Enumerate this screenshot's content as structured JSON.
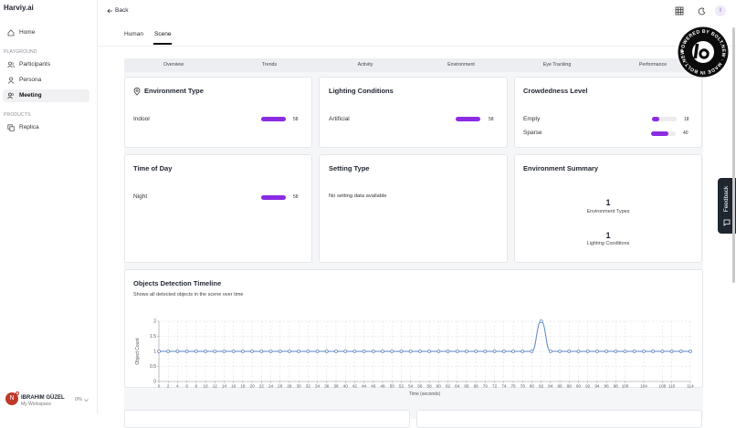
{
  "sidebar": {
    "brand": "Harviy.ai",
    "home": "Home",
    "groups": [
      {
        "title": "PLAYGROUND",
        "items": [
          "Participants",
          "Persona",
          "Meeting"
        ]
      },
      {
        "title": "PRODUCTS",
        "items": [
          "Replica"
        ]
      }
    ],
    "user": {
      "initial": "N",
      "name": "IBRAHIM GÜZEL",
      "workspace": "My Workspace",
      "usage": "0%"
    }
  },
  "header": {
    "back": "Back",
    "avatar": "I"
  },
  "tabs": [
    "Human",
    "Scene"
  ],
  "subtabs": [
    "Overview",
    "Trends",
    "Activity",
    "Environment",
    "Eye Tracking",
    "Performance"
  ],
  "cards": [
    {
      "title": "Environment Type",
      "items": [
        {
          "label": "Indoor",
          "value": 58
        }
      ]
    },
    {
      "title": "Lighting Conditions",
      "items": [
        {
          "label": "Artificial",
          "value": 58
        }
      ]
    },
    {
      "title": "Crowdedness Level",
      "items": [
        {
          "label": "Empty",
          "value": 18
        },
        {
          "label": "Sparse",
          "value": 40
        }
      ]
    },
    {
      "title": "Time of Day",
      "items": [
        {
          "label": "Night",
          "value": 58
        }
      ]
    },
    {
      "title": "Setting Type",
      "message": "No setting data available"
    },
    {
      "title": "Environment Summary",
      "stats": [
        {
          "value": 1,
          "label": "Environment Types"
        },
        {
          "value": 1,
          "label": "Lighting Conditions"
        }
      ]
    }
  ],
  "chart_data": {
    "type": "line",
    "title": "Objects Detection Timeline",
    "subtitle": "Shows all detected objects in the scene over time",
    "x_label": "Time (seconds)",
    "y_label": "Object Count",
    "x": [
      0,
      2,
      4,
      6,
      8,
      10,
      12,
      14,
      16,
      18,
      20,
      22,
      24,
      26,
      28,
      30,
      32,
      34,
      36,
      38,
      40,
      42,
      44,
      46,
      48,
      50,
      52,
      54,
      56,
      58,
      60,
      62,
      64,
      66,
      68,
      70,
      72,
      74,
      76,
      78,
      80,
      82,
      84,
      86,
      88,
      90,
      92,
      94,
      96,
      98,
      100,
      102,
      104,
      106,
      108,
      110,
      112,
      114
    ],
    "values": [
      1,
      1,
      1,
      1,
      1,
      1,
      1,
      1,
      1,
      1,
      1,
      1,
      1,
      1,
      1,
      1,
      1,
      1,
      1,
      1,
      1,
      1,
      1,
      1,
      1,
      1,
      1,
      1,
      1,
      1,
      1,
      1,
      1,
      1,
      1,
      1,
      1,
      1,
      1,
      1,
      1,
      2,
      1,
      1,
      1,
      1,
      1,
      1,
      1,
      1,
      1,
      1,
      1,
      1,
      1,
      1,
      1,
      1
    ],
    "color": "#5b84c4",
    "xlim": [
      0,
      114
    ],
    "ylim": [
      0,
      2
    ],
    "xticks": [
      0,
      2,
      4,
      6,
      8,
      10,
      12,
      14,
      16,
      18,
      20,
      22,
      24,
      26,
      28,
      30,
      32,
      34,
      36,
      38,
      40,
      42,
      44,
      46,
      48,
      50,
      52,
      54,
      56,
      58,
      60,
      62,
      64,
      66,
      68,
      70,
      72,
      74,
      76,
      78,
      80,
      82,
      84,
      86,
      88,
      90,
      92,
      94,
      96,
      98,
      100,
      104,
      108,
      110,
      114
    ],
    "yticks": [
      0,
      0.5,
      1,
      1.5,
      2
    ],
    "grid": true
  },
  "badge": {
    "text": "POWERED BY BOLT.NEW · MADE IN BOLT.NEW ·"
  },
  "feedback": "Feedback"
}
